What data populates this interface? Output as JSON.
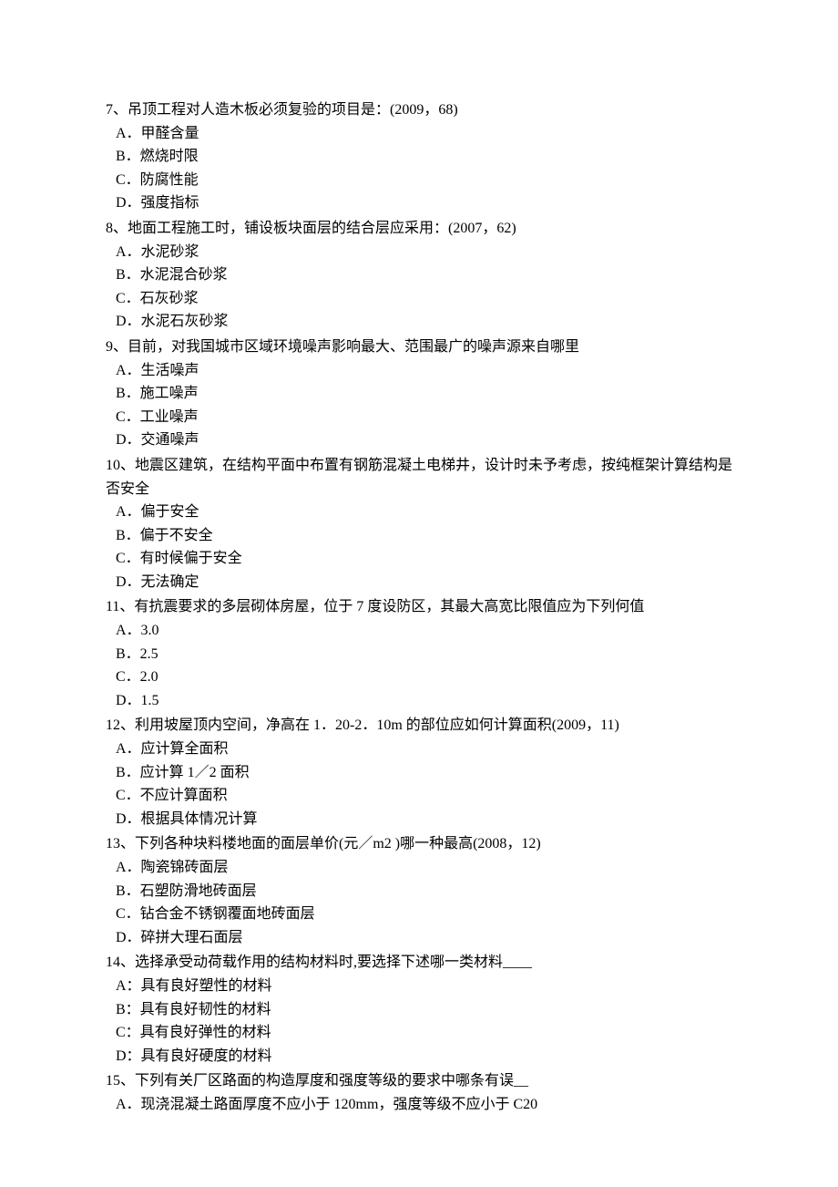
{
  "questions": [
    {
      "number": "7",
      "text": "、吊顶工程对人造木板必须复验的项目是：(2009，68)",
      "options": [
        "A．甲醛含量",
        "B．燃烧时限",
        "C．防腐性能",
        "D．强度指标"
      ]
    },
    {
      "number": "8",
      "text": "、地面工程施工时，铺设板块面层的结合层应采用：(2007，62)",
      "options": [
        "A．水泥砂浆",
        "B．水泥混合砂浆",
        "C．石灰砂浆",
        "D．水泥石灰砂浆"
      ]
    },
    {
      "number": "9",
      "text": "、目前，对我国城市区域环境噪声影响最大、范围最广的噪声源来自哪里",
      "options": [
        "A．生活噪声",
        "B．施工噪声",
        "C．工业噪声",
        "D．交通噪声"
      ]
    },
    {
      "number": "10",
      "text": "、地震区建筑，在结构平面中布置有钢筋混凝土电梯井，设计时未予考虑，按纯框架计算结构是否安全",
      "options": [
        "A．偏于安全",
        "B．偏于不安全",
        "C．有时候偏于安全",
        "D．无法确定"
      ]
    },
    {
      "number": "11",
      "text": "、有抗震要求的多层砌体房屋，位于 7 度设防区，其最大高宽比限值应为下列何值",
      "options": [
        "A．3.0",
        "B．2.5",
        "C．2.0",
        "D．1.5"
      ]
    },
    {
      "number": "12",
      "text": "、利用坡屋顶内空间，净高在 1．20-2．10m 的部位应如何计算面积(2009，11)",
      "options": [
        "A．应计算全面积",
        "B．应计算 1／2 面积",
        "C．不应计算面积",
        "D．根据具体情况计算"
      ]
    },
    {
      "number": "13",
      "text": "、下列各种块料楼地面的面层单价(元／m2 )哪一种最高(2008，12)",
      "options": [
        "A．陶瓷锦砖面层",
        "B．石塑防滑地砖面层",
        "C．钻合金不锈钢覆面地砖面层",
        "D．碎拼大理石面层"
      ]
    },
    {
      "number": "14",
      "text": "、选择承受动荷载作用的结构材料时,要选择下述哪一类材料____",
      "options": [
        "A：具有良好塑性的材料",
        "B：具有良好韧性的材料",
        "C：具有良好弹性的材料",
        "D：具有良好硬度的材料"
      ]
    },
    {
      "number": "15",
      "text": "、下列有关厂区路面的构造厚度和强度等级的要求中哪条有误__",
      "options": [
        "A．现浇混凝土路面厚度不应小于 120mm，强度等级不应小于 C20"
      ]
    }
  ]
}
